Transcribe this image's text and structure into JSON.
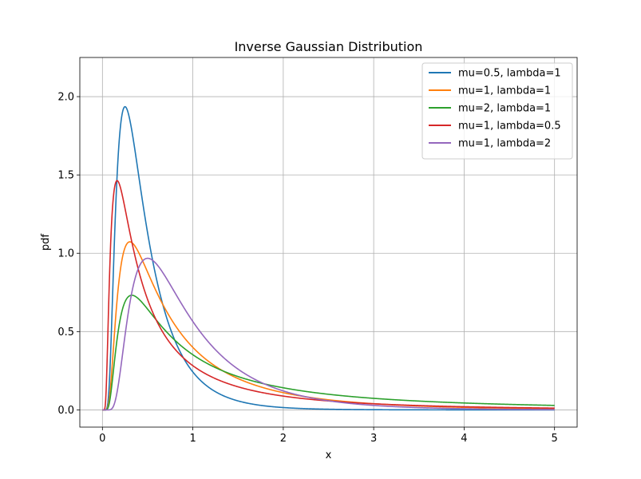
{
  "chart_data": {
    "type": "line",
    "title": "Inverse Gaussian Distribution",
    "xlabel": "x",
    "ylabel": "pdf",
    "xlim": [
      -0.25,
      5.25
    ],
    "ylim": [
      -0.11,
      2.25
    ],
    "xticks": [
      0,
      1,
      2,
      3,
      4,
      5
    ],
    "xtick_labels": [
      "0",
      "1",
      "2",
      "3",
      "4",
      "5"
    ],
    "yticks": [
      0.0,
      0.5,
      1.0,
      1.5,
      2.0
    ],
    "ytick_labels": [
      "0.0",
      "0.5",
      "1.0",
      "1.5",
      "2.0"
    ],
    "grid": true,
    "legend_position": "top-right",
    "x_range": [
      0.001,
      5
    ],
    "series": [
      {
        "name": "mu=0.5, lambda=1",
        "mu": 0.5,
        "lambda": 1,
        "color": "#1f77b4"
      },
      {
        "name": "mu=1, lambda=1",
        "mu": 1,
        "lambda": 1,
        "color": "#ff7f0e"
      },
      {
        "name": "mu=2, lambda=1",
        "mu": 2,
        "lambda": 1,
        "color": "#2ca02c"
      },
      {
        "name": "mu=1, lambda=0.5",
        "mu": 1,
        "lambda": 0.5,
        "color": "#d62728"
      },
      {
        "name": "mu=1, lambda=2",
        "mu": 1,
        "lambda": 2,
        "color": "#9467bd"
      }
    ]
  }
}
